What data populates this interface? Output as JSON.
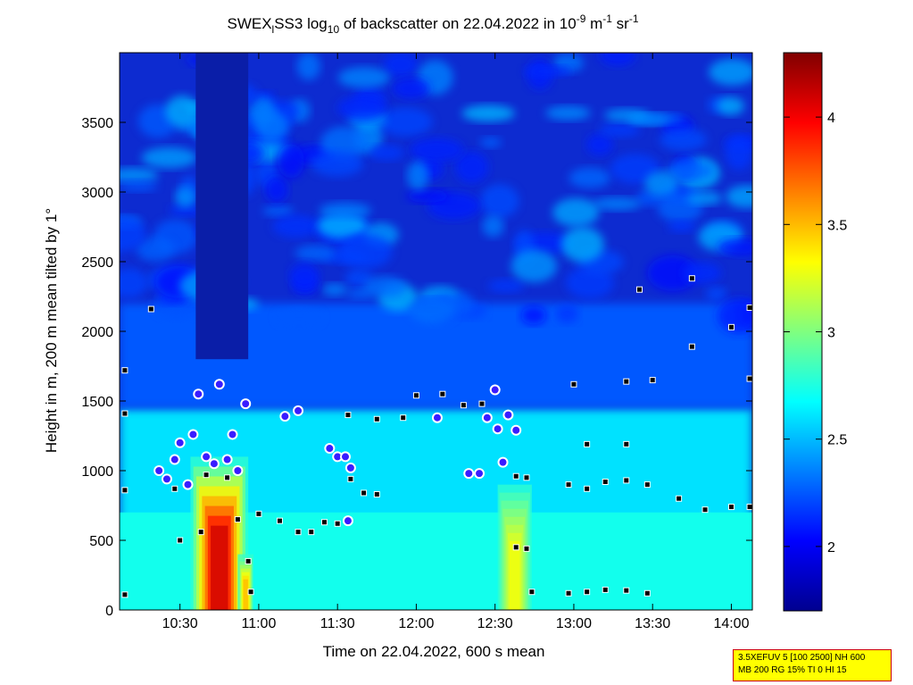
{
  "title": {
    "part1": "SWEX",
    "part1_sub": "l",
    "part2": "SS3 log",
    "part2_sub": "10",
    "part3": " of backscatter on 22.04.2022 in 10",
    "part3_sup": "-9",
    "part4": " m",
    "part4_sup": "-1",
    "part5": " sr",
    "part5_sup": "-1"
  },
  "chart_data": {
    "type": "heatmap",
    "xlabel": "Time on 22.04.2022, 600 s mean",
    "ylabel": "Height in m, 200 m mean tilted by 1°",
    "x_ticks": [
      "10:30",
      "11:00",
      "11:30",
      "12:00",
      "12:30",
      "13:00",
      "13:30",
      "14:00"
    ],
    "x_range": [
      "10:07",
      "14:08"
    ],
    "y_ticks": [
      0,
      500,
      1000,
      1500,
      2000,
      2500,
      3000,
      3500
    ],
    "ylim": [
      0,
      4000
    ],
    "colorbar": {
      "ticks": [
        2,
        2.5,
        3,
        3.5,
        4
      ],
      "range": [
        1.7,
        4.3
      ],
      "colormap": "jet"
    },
    "plumes": [
      {
        "t_start": "10:34",
        "t_end": "10:56",
        "top_m": 1100,
        "peak": 4.1
      },
      {
        "t_start": "12:31",
        "t_end": "12:44",
        "top_m": 900,
        "peak": 3.3
      },
      {
        "t_start": "10:52",
        "t_end": "10:58",
        "top_m": 400,
        "peak": 3.5
      }
    ],
    "layer_markers": [
      {
        "t": "10:40",
        "h": 970
      },
      {
        "t": "10:48",
        "h": 950
      },
      {
        "t": "10:52",
        "h": 650
      },
      {
        "t": "10:56",
        "h": 350
      },
      {
        "t": "10:57",
        "h": 130
      },
      {
        "t": "11:00",
        "h": 690
      },
      {
        "t": "11:08",
        "h": 640
      },
      {
        "t": "11:15",
        "h": 560
      },
      {
        "t": "11:20",
        "h": 560
      },
      {
        "t": "11:25",
        "h": 630
      },
      {
        "t": "11:30",
        "h": 620
      },
      {
        "t": "11:35",
        "h": 940
      },
      {
        "t": "11:40",
        "h": 840
      },
      {
        "t": "11:45",
        "h": 830
      },
      {
        "t": "11:34",
        "h": 1400
      },
      {
        "t": "11:45",
        "h": 1370
      },
      {
        "t": "11:55",
        "h": 1380
      },
      {
        "t": "12:00",
        "h": 1540
      },
      {
        "t": "12:10",
        "h": 1550
      },
      {
        "t": "12:18",
        "h": 1470
      },
      {
        "t": "12:25",
        "h": 1480
      },
      {
        "t": "12:38",
        "h": 960
      },
      {
        "t": "12:42",
        "h": 950
      },
      {
        "t": "12:38",
        "h": 450
      },
      {
        "t": "12:42",
        "h": 440
      },
      {
        "t": "12:44",
        "h": 130
      },
      {
        "t": "12:58",
        "h": 120
      },
      {
        "t": "13:05",
        "h": 130
      },
      {
        "t": "13:12",
        "h": 145
      },
      {
        "t": "13:20",
        "h": 140
      },
      {
        "t": "13:28",
        "h": 120
      },
      {
        "t": "12:58",
        "h": 900
      },
      {
        "t": "13:05",
        "h": 870
      },
      {
        "t": "13:12",
        "h": 920
      },
      {
        "t": "13:20",
        "h": 930
      },
      {
        "t": "13:28",
        "h": 900
      },
      {
        "t": "13:40",
        "h": 800
      },
      {
        "t": "13:50",
        "h": 720
      },
      {
        "t": "14:00",
        "h": 740
      },
      {
        "t": "13:20",
        "h": 1640
      },
      {
        "t": "13:30",
        "h": 1650
      },
      {
        "t": "13:25",
        "h": 2300
      },
      {
        "t": "13:45",
        "h": 2380
      },
      {
        "t": "13:45",
        "h": 1890
      },
      {
        "t": "14:00",
        "h": 2030
      },
      {
        "t": "13:05",
        "h": 1190
      },
      {
        "t": "13:20",
        "h": 1190
      },
      {
        "t": "13:00",
        "h": 1620
      },
      {
        "t": "10:28",
        "h": 870
      },
      {
        "t": "10:30",
        "h": 500
      },
      {
        "t": "10:38",
        "h": 560
      },
      {
        "t": "10:09",
        "h": 110
      },
      {
        "t": "10:09",
        "h": 860
      },
      {
        "t": "10:09",
        "h": 1410
      },
      {
        "t": "10:09",
        "h": 1720
      },
      {
        "t": "10:19",
        "h": 2160
      },
      {
        "t": "14:07",
        "h": 1660
      },
      {
        "t": "14:07",
        "h": 2170
      },
      {
        "t": "14:07",
        "h": 740
      }
    ],
    "cloud_markers": [
      {
        "t": "10:22",
        "h": 1000
      },
      {
        "t": "10:25",
        "h": 940
      },
      {
        "t": "10:28",
        "h": 1080
      },
      {
        "t": "10:30",
        "h": 1200
      },
      {
        "t": "10:33",
        "h": 900
      },
      {
        "t": "10:35",
        "h": 1260
      },
      {
        "t": "10:37",
        "h": 1550
      },
      {
        "t": "10:40",
        "h": 1100
      },
      {
        "t": "10:43",
        "h": 1050
      },
      {
        "t": "10:45",
        "h": 1620
      },
      {
        "t": "10:48",
        "h": 1080
      },
      {
        "t": "10:50",
        "h": 1260
      },
      {
        "t": "10:52",
        "h": 1000
      },
      {
        "t": "10:55",
        "h": 1480
      },
      {
        "t": "11:10",
        "h": 1390
      },
      {
        "t": "11:15",
        "h": 1430
      },
      {
        "t": "11:27",
        "h": 1160
      },
      {
        "t": "11:30",
        "h": 1100
      },
      {
        "t": "11:33",
        "h": 1100
      },
      {
        "t": "11:35",
        "h": 1020
      },
      {
        "t": "11:34",
        "h": 640
      },
      {
        "t": "12:08",
        "h": 1380
      },
      {
        "t": "12:20",
        "h": 980
      },
      {
        "t": "12:24",
        "h": 980
      },
      {
        "t": "12:27",
        "h": 1380
      },
      {
        "t": "12:30",
        "h": 1580
      },
      {
        "t": "12:31",
        "h": 1300
      },
      {
        "t": "12:33",
        "h": 1060
      },
      {
        "t": "12:35",
        "h": 1400
      },
      {
        "t": "12:38",
        "h": 1290
      }
    ]
  },
  "info_box": {
    "line1": "3.5XEFUV 5 [100 2500] NH 600",
    "line2": "MB 200 RG 15% TI 0 HI 15"
  }
}
